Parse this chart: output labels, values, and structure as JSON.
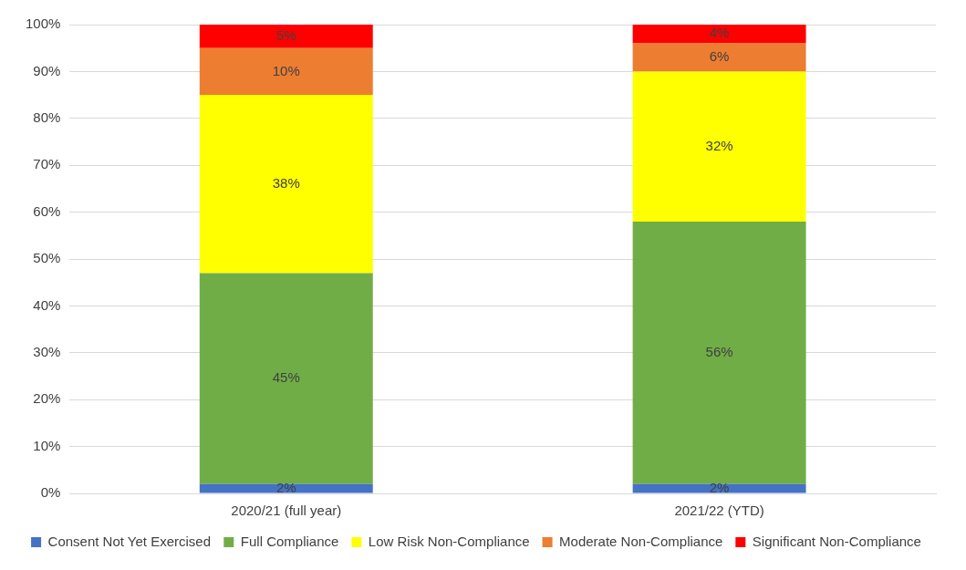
{
  "chart_data": {
    "type": "bar",
    "stacked": true,
    "categories": [
      "2020/21 (full year)",
      "2021/22 (YTD)"
    ],
    "series": [
      {
        "name": "Consent Not Yet Exercised",
        "color": "#4472c4",
        "values": [
          2,
          2
        ],
        "value_labels": [
          "2%",
          "2%"
        ]
      },
      {
        "name": "Full Compliance",
        "color": "#70ad47",
        "values": [
          45,
          56
        ],
        "value_labels": [
          "45%",
          "56%"
        ]
      },
      {
        "name": "Low Risk Non-Compliance",
        "color": "#ffff00",
        "values": [
          38,
          32
        ],
        "value_labels": [
          "38%",
          "32%"
        ]
      },
      {
        "name": "Moderate Non-Compliance",
        "color": "#ed7d31",
        "values": [
          10,
          6
        ],
        "value_labels": [
          "10%",
          "6%"
        ]
      },
      {
        "name": "Significant Non-Compliance",
        "color": "#ff0000",
        "values": [
          5,
          4
        ],
        "value_labels": [
          "5%",
          "4%"
        ]
      }
    ],
    "ylim": [
      0,
      100
    ],
    "yticks": [
      {
        "value": 0,
        "label": "0%"
      },
      {
        "value": 10,
        "label": "10%"
      },
      {
        "value": 20,
        "label": "20%"
      },
      {
        "value": 30,
        "label": "30%"
      },
      {
        "value": 40,
        "label": "40%"
      },
      {
        "value": 50,
        "label": "50%"
      },
      {
        "value": 60,
        "label": "60%"
      },
      {
        "value": 70,
        "label": "70%"
      },
      {
        "value": 80,
        "label": "80%"
      },
      {
        "value": 90,
        "label": "90%"
      },
      {
        "value": 100,
        "label": "100%"
      }
    ],
    "grid": "y",
    "legend": "bottom"
  }
}
